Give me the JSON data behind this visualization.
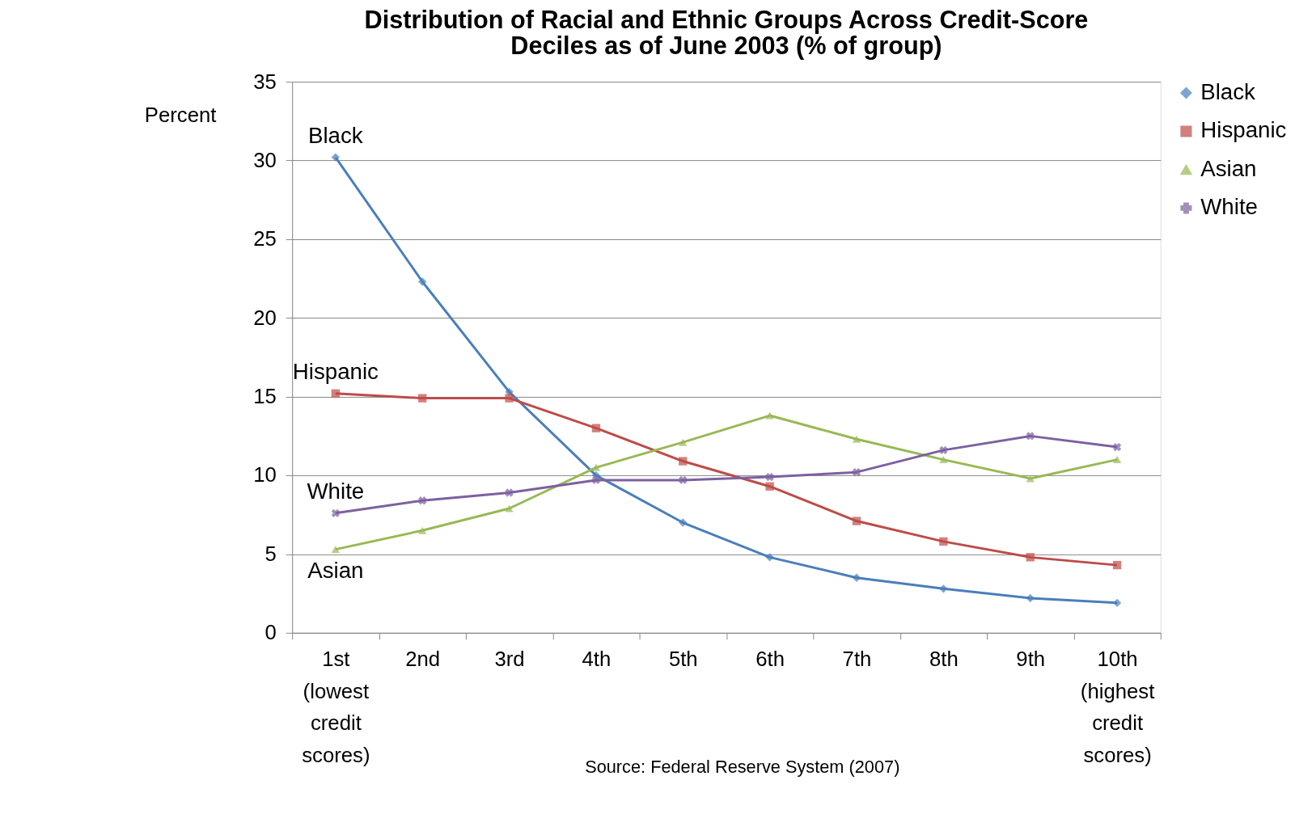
{
  "chart_data": {
    "type": "line",
    "title": [
      "Distribution of Racial and Ethnic Groups Across Credit-Score",
      "Deciles as of June 2003 (% of group)"
    ],
    "ylabel": "Percent",
    "categories": [
      "1st (lowest credit scores)",
      "2nd",
      "3rd",
      "4th",
      "5th",
      "6th",
      "7th",
      "8th",
      "9th",
      "10th (highest credit scores)"
    ],
    "series": [
      {
        "name": "Black",
        "color": "#4a7ebb",
        "marker": "diamond",
        "values": [
          30.2,
          22.3,
          15.3,
          10.0,
          7.0,
          4.8,
          3.5,
          2.8,
          2.2,
          1.9
        ]
      },
      {
        "name": "Hispanic",
        "color": "#be4b48",
        "marker": "square",
        "values": [
          15.2,
          14.9,
          14.9,
          13.0,
          10.9,
          9.3,
          7.1,
          5.8,
          4.8,
          4.3
        ]
      },
      {
        "name": "Asian",
        "color": "#98b954",
        "marker": "triangle",
        "values": [
          5.3,
          6.5,
          7.9,
          10.5,
          12.1,
          13.8,
          12.3,
          11.0,
          9.8,
          11.0
        ]
      },
      {
        "name": "White",
        "color": "#7d60a0",
        "marker": "cross",
        "values": [
          7.6,
          8.4,
          8.9,
          9.7,
          9.7,
          9.9,
          10.2,
          11.6,
          12.5,
          11.8
        ]
      }
    ],
    "annotations": [
      {
        "text": "Black",
        "x": "1st (lowest credit scores)",
        "y": 30.2
      },
      {
        "text": "Hispanic",
        "x": "1st (lowest credit scores)",
        "y": 15.2
      },
      {
        "text": "White",
        "x": "1st (lowest credit scores)",
        "y": 7.6
      },
      {
        "text": "Asian",
        "x": "1st (lowest credit scores)",
        "y": 5.3
      },
      "Source: Federal Reserve System (2007)"
    ],
    "ylim": [
      0,
      35
    ],
    "yticks": [
      0,
      5,
      10,
      15,
      20,
      25,
      30,
      35
    ],
    "grid": "y",
    "legend": "right",
    "line_style": "solid"
  }
}
